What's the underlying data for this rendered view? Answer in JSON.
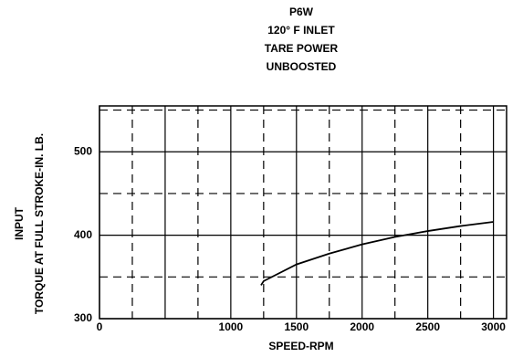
{
  "chart_data": {
    "type": "line",
    "title": [
      "P6W",
      "120° F INLET",
      "TARE POWER",
      "UNBOOSTED"
    ],
    "xlabel": "SPEED-RPM",
    "ylabel": [
      "INPUT",
      "TORQUE AT FULL STROKE-IN. LB."
    ],
    "x": [
      1230,
      1250,
      1500,
      1750,
      2000,
      2250,
      2500,
      2750,
      3000
    ],
    "series": [
      {
        "color": "#000000",
        "values": [
          340,
          345,
          365,
          378,
          389,
          398,
          405,
          411,
          416
        ]
      }
    ],
    "xlim": [
      0,
      3100
    ],
    "xticks": [
      0,
      1000,
      1500,
      2000,
      2500,
      3000
    ],
    "ylim": [
      300,
      555
    ],
    "yticks": [
      300,
      400,
      500
    ],
    "grid": true
  }
}
